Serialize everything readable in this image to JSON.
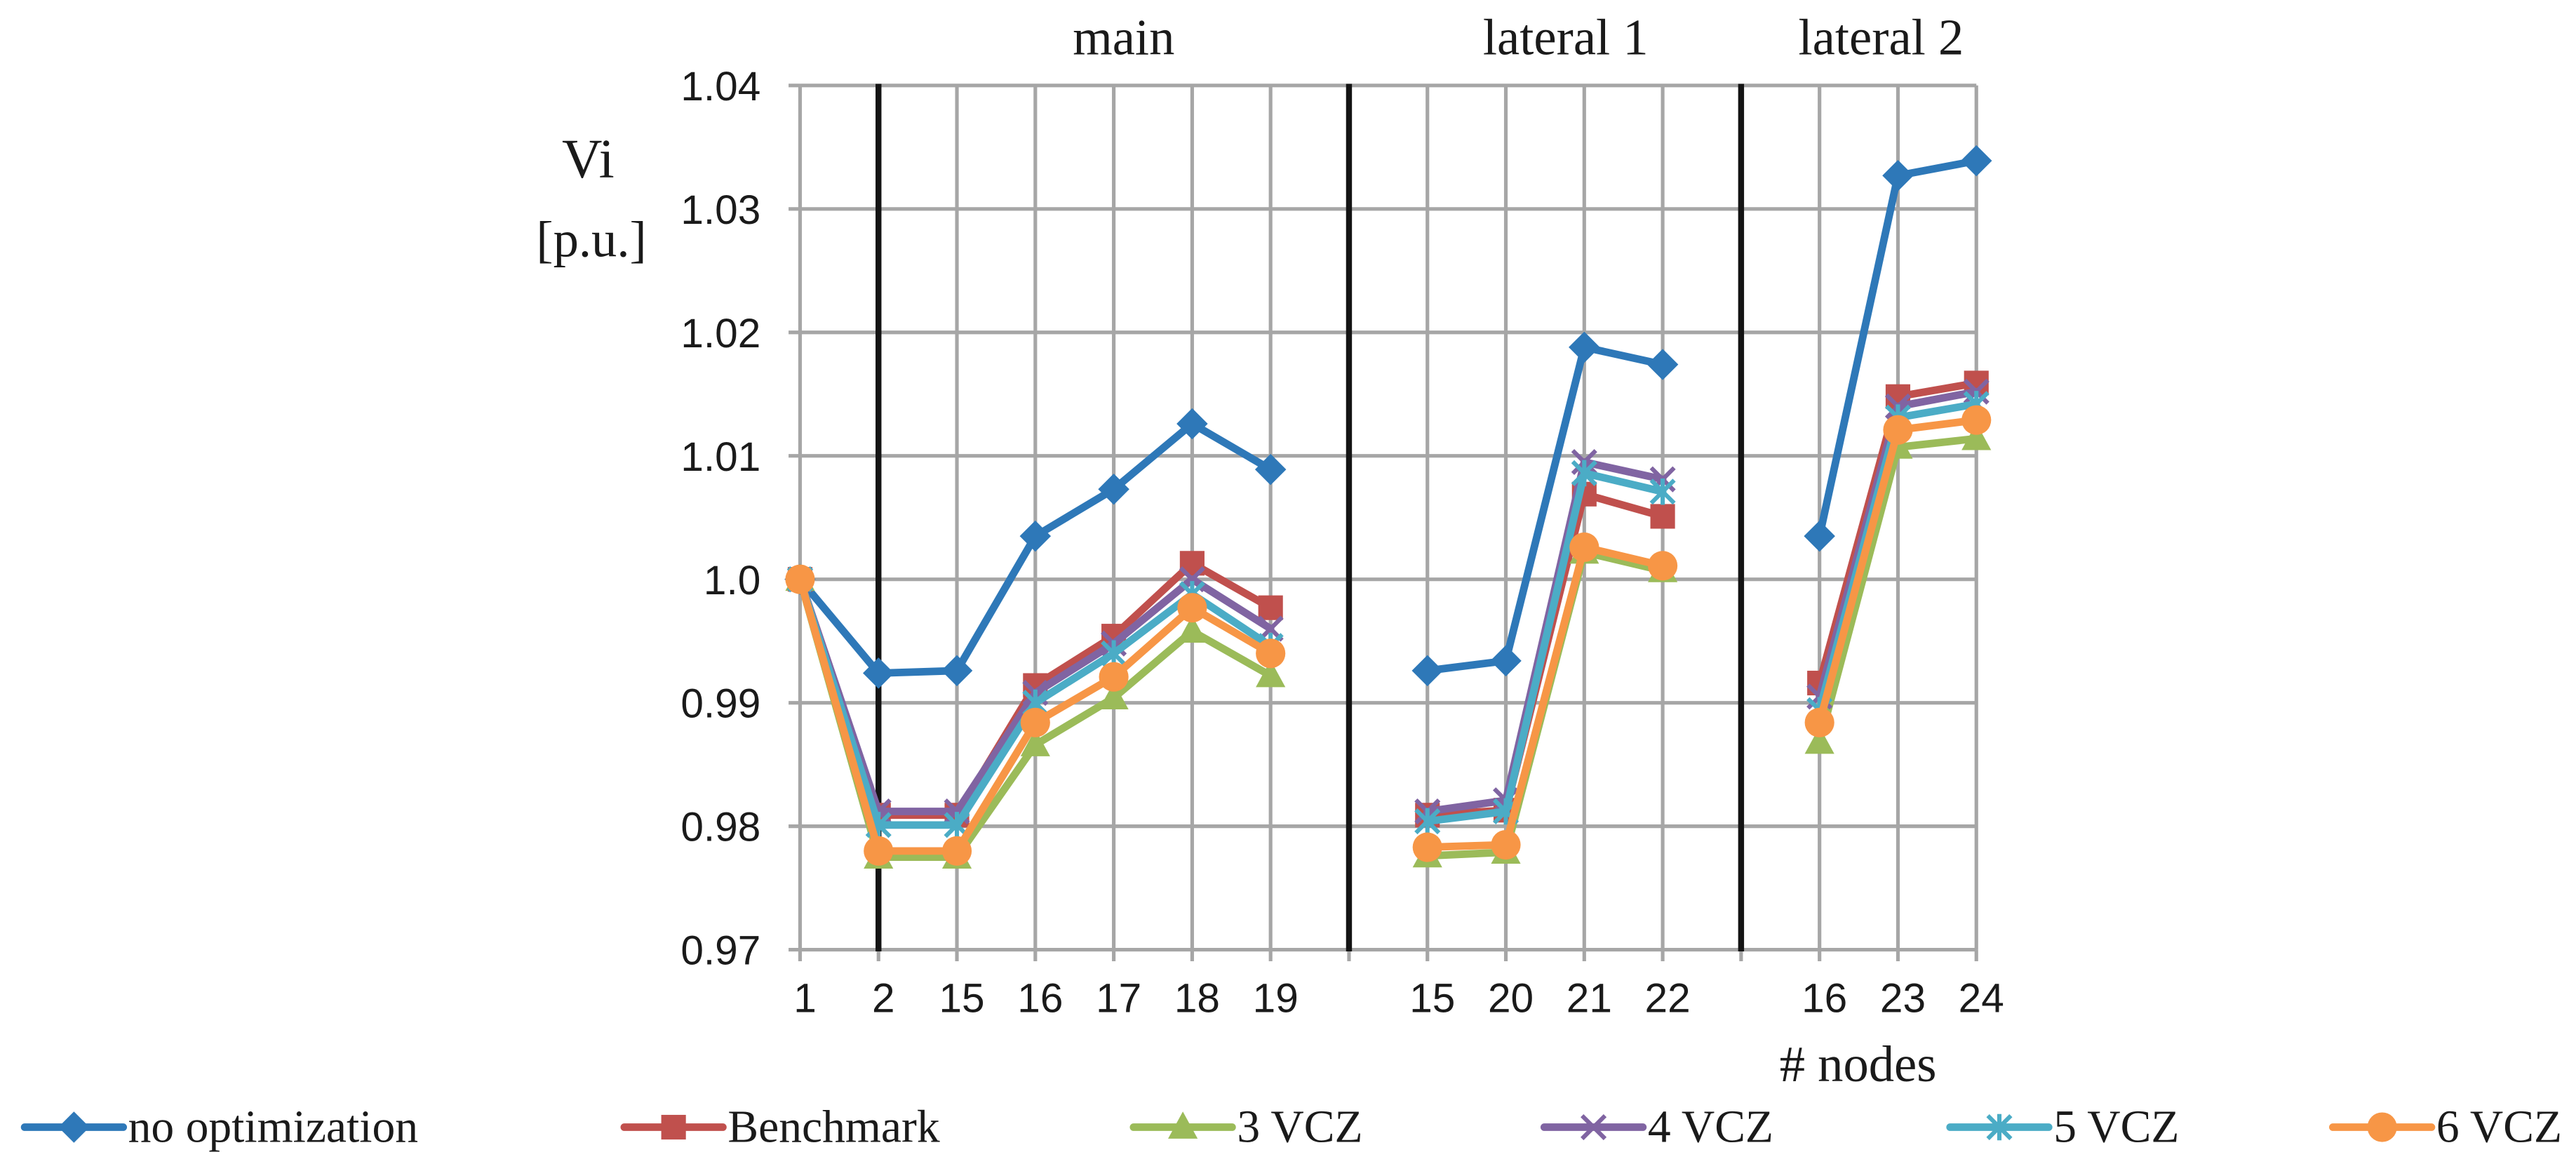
{
  "chart_data": {
    "type": "line",
    "categories": [
      "1",
      "2",
      "15",
      "16",
      "17",
      "18",
      "19",
      "",
      "15",
      "20",
      "21",
      "22",
      "",
      "16",
      "23",
      "24"
    ],
    "section_labels": [
      "main",
      "lateral 1",
      "lateral 2"
    ],
    "divider_category_indices": [
      1,
      7,
      12
    ],
    "ylabel": "Vi",
    "ylabel_unit": "[p.u.]",
    "xlabel": "# nodes",
    "ylim": [
      0.97,
      1.04
    ],
    "yticks": [
      1.04,
      1.03,
      1.02,
      1.01,
      1.0,
      0.99,
      0.98,
      0.97
    ],
    "ytick_labels": [
      "1.04",
      "1.03",
      "1.02",
      "1.01",
      "1.0",
      "0.99",
      "0.98",
      "0.97"
    ],
    "grid": true,
    "legend_position": "bottom",
    "series": [
      {
        "name": "no optimization",
        "color": "#2E78B8",
        "marker": "diamond",
        "values": [
          1.0,
          0.9924,
          0.9926,
          1.0035,
          1.0073,
          1.0126,
          1.0089,
          null,
          0.9926,
          0.9934,
          1.0188,
          1.0174,
          null,
          1.0035,
          1.0327,
          1.0339
        ]
      },
      {
        "name": "Benchmark",
        "color": "#C0504D",
        "marker": "square",
        "values": [
          1.0,
          0.9809,
          0.9809,
          0.9914,
          0.9954,
          1.0013,
          0.9977,
          null,
          0.9809,
          0.9813,
          1.0069,
          1.0051,
          null,
          0.9916,
          1.0148,
          1.0159
        ]
      },
      {
        "name": "3 VCZ",
        "color": "#9BBB59",
        "marker": "triangle",
        "values": [
          1.0,
          0.9775,
          0.9775,
          0.9866,
          0.9904,
          0.9958,
          0.9922,
          null,
          0.9776,
          0.9779,
          1.0022,
          1.0007,
          null,
          0.9868,
          1.0107,
          1.0114
        ]
      },
      {
        "name": "4 VCZ",
        "color": "#8064A2",
        "marker": "x",
        "values": [
          1.0,
          0.9812,
          0.9812,
          0.9908,
          0.9948,
          1.0,
          0.996,
          null,
          0.9812,
          0.9821,
          1.0095,
          1.0081,
          null,
          0.9905,
          1.014,
          1.0152
        ]
      },
      {
        "name": "5 VCZ",
        "color": "#4BACC6",
        "marker": "asterisk",
        "values": [
          1.0,
          0.9801,
          0.9801,
          0.99,
          0.994,
          0.9988,
          0.9946,
          null,
          0.9804,
          0.9812,
          1.0086,
          1.0071,
          null,
          0.9894,
          1.0131,
          1.0142
        ]
      },
      {
        "name": "6 VCZ",
        "color": "#F79646",
        "marker": "circle",
        "values": [
          1.0,
          0.978,
          0.978,
          0.9884,
          0.9921,
          0.9977,
          0.994,
          null,
          0.9783,
          0.9785,
          1.0026,
          1.0011,
          null,
          0.9884,
          1.0121,
          1.0129
        ]
      }
    ]
  }
}
